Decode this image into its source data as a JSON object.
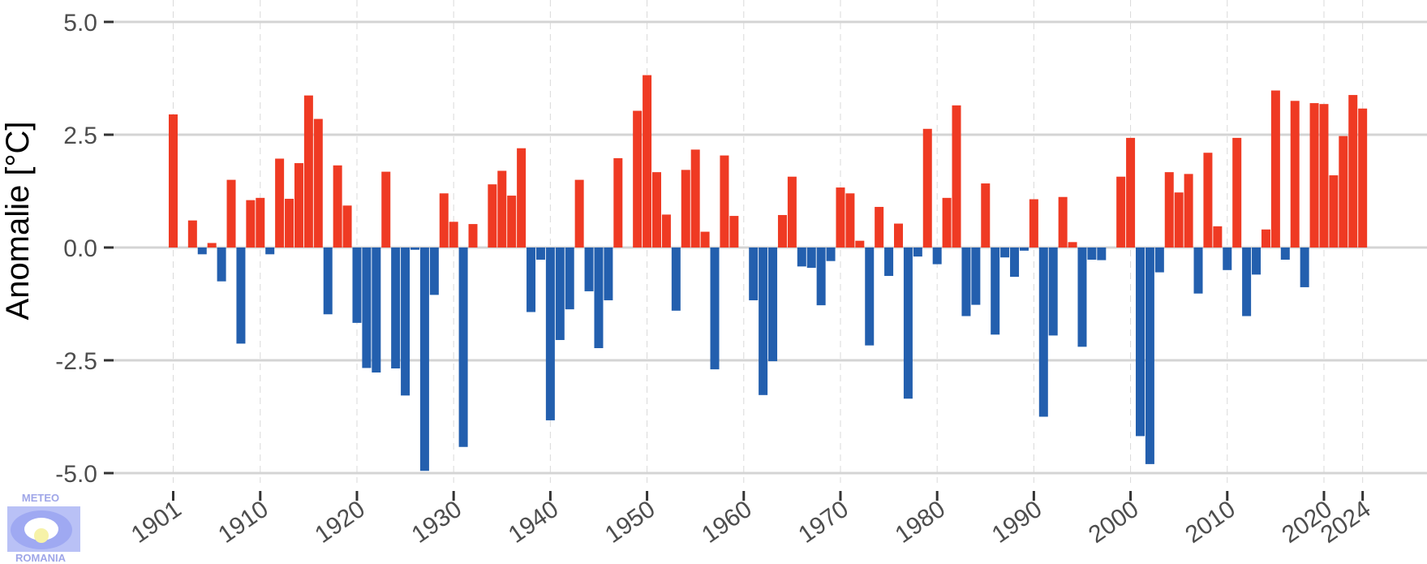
{
  "chart_data": {
    "type": "bar",
    "title": "",
    "xlabel": "",
    "ylabel": "Anomalie [°C]",
    "ylim": [
      -5,
      5
    ],
    "xlim": [
      1900,
      2025
    ],
    "grid": true,
    "legend": "none",
    "yticks": [
      5.0,
      2.5,
      0.0,
      -2.5,
      -5.0
    ],
    "ytick_labels": [
      "5.0",
      "2.5",
      "0.0",
      "-2.5",
      "-5.0"
    ],
    "xticks": [
      1901,
      1910,
      1920,
      1930,
      1940,
      1950,
      1960,
      1970,
      1980,
      1990,
      2000,
      2010,
      2020,
      2024
    ],
    "xtick_labels": [
      "1901",
      "1910",
      "1920",
      "1930",
      "1940",
      "1950",
      "1960",
      "1970",
      "1980",
      "1990",
      "2000",
      "2010",
      "2020",
      "2024"
    ],
    "positive_color": "#ef3a23",
    "negative_color": "#235fae",
    "x": [
      1901,
      1902,
      1903,
      1904,
      1905,
      1906,
      1907,
      1908,
      1909,
      1910,
      1911,
      1912,
      1913,
      1914,
      1915,
      1916,
      1917,
      1918,
      1919,
      1920,
      1921,
      1922,
      1923,
      1924,
      1925,
      1926,
      1927,
      1928,
      1929,
      1930,
      1931,
      1932,
      1933,
      1934,
      1935,
      1936,
      1937,
      1938,
      1939,
      1940,
      1941,
      1942,
      1943,
      1944,
      1945,
      1946,
      1947,
      1948,
      1949,
      1950,
      1951,
      1952,
      1953,
      1954,
      1955,
      1956,
      1957,
      1958,
      1959,
      1960,
      1961,
      1962,
      1963,
      1964,
      1965,
      1966,
      1967,
      1968,
      1969,
      1970,
      1971,
      1972,
      1973,
      1974,
      1975,
      1976,
      1977,
      1978,
      1979,
      1980,
      1981,
      1982,
      1983,
      1984,
      1985,
      1986,
      1987,
      1988,
      1989,
      1990,
      1991,
      1992,
      1993,
      1994,
      1995,
      1996,
      1997,
      1998,
      1999,
      2000,
      2001,
      2002,
      2003,
      2004,
      2005,
      2006,
      2007,
      2008,
      2009,
      2010,
      2011,
      2012,
      2013,
      2014,
      2015,
      2016,
      2017,
      2018,
      2019,
      2020,
      2021,
      2022,
      2023,
      2024
    ],
    "values": [
      2.95,
      0.0,
      0.6,
      -0.15,
      0.1,
      -0.75,
      1.5,
      -2.13,
      1.05,
      1.1,
      -0.15,
      1.97,
      1.08,
      1.87,
      3.37,
      2.85,
      -1.48,
      1.82,
      0.93,
      -1.67,
      -2.67,
      -2.77,
      1.68,
      -2.68,
      -3.28,
      -0.05,
      -4.95,
      -1.05,
      1.2,
      0.57,
      -4.42,
      0.52,
      0.0,
      1.4,
      1.7,
      1.15,
      2.2,
      -1.43,
      -0.27,
      -3.83,
      -2.05,
      -1.37,
      1.5,
      -0.97,
      -2.23,
      -1.17,
      1.98,
      0.0,
      3.03,
      3.82,
      1.67,
      0.73,
      -1.4,
      1.72,
      2.17,
      0.35,
      -2.7,
      2.04,
      0.7,
      0.0,
      -1.17,
      -3.27,
      -2.52,
      0.72,
      1.57,
      -0.42,
      -0.45,
      -1.28,
      -0.3,
      1.33,
      1.2,
      0.15,
      -2.17,
      0.9,
      -0.63,
      0.53,
      -3.35,
      -0.2,
      2.63,
      -0.37,
      1.1,
      3.15,
      -1.52,
      -1.27,
      1.42,
      -1.93,
      -0.22,
      -0.65,
      -0.07,
      1.07,
      -3.75,
      -1.95,
      1.12,
      0.12,
      -2.2,
      -0.27,
      -0.28,
      0.0,
      1.57,
      2.43,
      -4.18,
      -4.8,
      -0.55,
      1.67,
      1.22,
      1.63,
      -1.02,
      2.1,
      0.47,
      -0.5,
      2.43,
      -1.52,
      -0.6,
      0.4,
      3.48,
      -0.27,
      3.25,
      -0.88,
      3.2,
      3.18,
      1.6,
      2.47,
      3.38,
      3.08
    ]
  },
  "logo": {
    "top_text": "METEO",
    "bottom_text": "ROMANIA"
  }
}
